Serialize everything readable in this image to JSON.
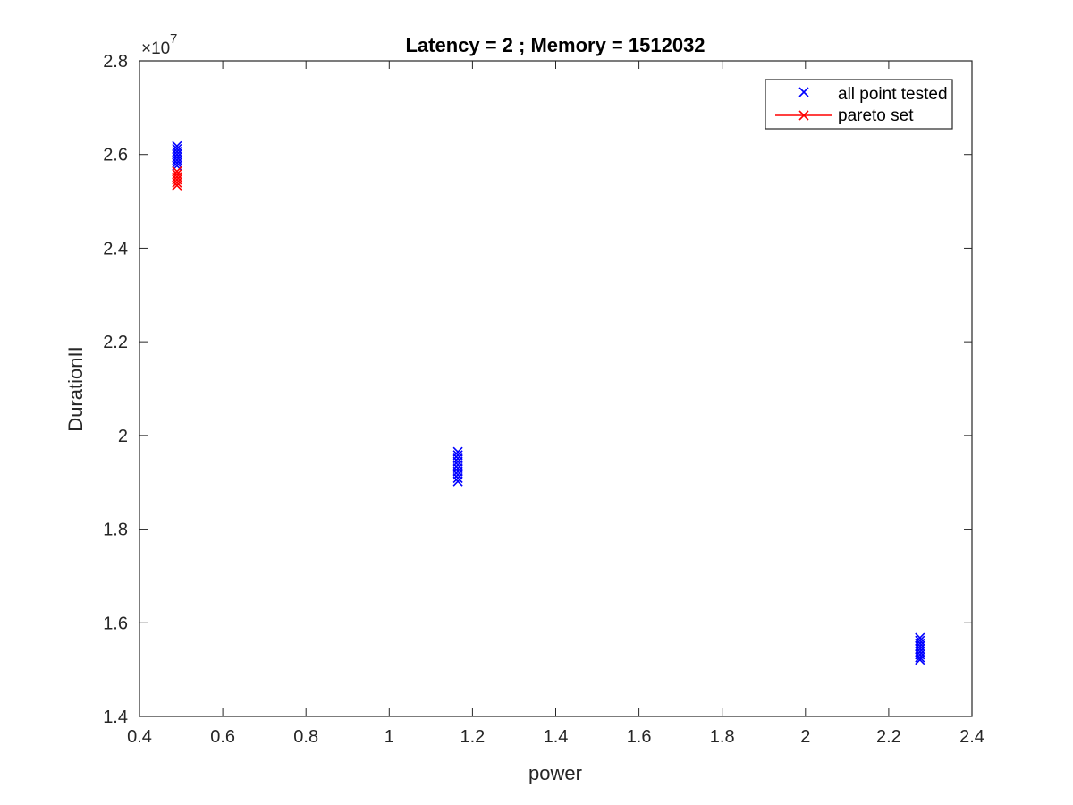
{
  "chart_data": {
    "type": "scatter",
    "title": "Latency = 2 ; Memory = 1512032",
    "xlabel": "power",
    "ylabel": "DurationII",
    "xlim": [
      0.4,
      2.4
    ],
    "ylim": [
      1.4,
      2.8
    ],
    "y_scale_exponent": {
      "base": "×10",
      "power": "7"
    },
    "xticks": [
      "0.4",
      "0.6",
      "0.8",
      "1",
      "1.2",
      "1.4",
      "1.6",
      "1.8",
      "2",
      "2.2",
      "2.4"
    ],
    "yticks": [
      "1.4",
      "1.6",
      "1.8",
      "2",
      "2.2",
      "2.4",
      "2.6",
      "2.8"
    ],
    "grid": false,
    "legend_position": "top-right",
    "series": [
      {
        "name": "all point tested",
        "color": "#0000ff",
        "marker": "x",
        "line": false,
        "points": [
          [
            0.49,
            2.618
          ],
          [
            0.49,
            2.612
          ],
          [
            0.49,
            2.606
          ],
          [
            0.49,
            2.6
          ],
          [
            0.49,
            2.594
          ],
          [
            0.49,
            2.588
          ],
          [
            0.49,
            2.582
          ],
          [
            0.49,
            2.576
          ],
          [
            1.165,
            1.965
          ],
          [
            1.165,
            1.958
          ],
          [
            1.165,
            1.951
          ],
          [
            1.165,
            1.944
          ],
          [
            1.165,
            1.937
          ],
          [
            1.165,
            1.93
          ],
          [
            1.165,
            1.923
          ],
          [
            1.165,
            1.916
          ],
          [
            1.165,
            1.909
          ],
          [
            1.165,
            1.902
          ],
          [
            2.275,
            1.568
          ],
          [
            2.275,
            1.562
          ],
          [
            2.275,
            1.556
          ],
          [
            2.275,
            1.55
          ],
          [
            2.275,
            1.544
          ],
          [
            2.275,
            1.538
          ],
          [
            2.275,
            1.532
          ],
          [
            2.275,
            1.526
          ],
          [
            2.275,
            1.521
          ]
        ]
      },
      {
        "name": "pareto set",
        "color": "#ff0000",
        "marker": "x",
        "line": true,
        "points": [
          [
            0.49,
            2.564
          ],
          [
            0.49,
            2.558
          ],
          [
            0.49,
            2.552
          ],
          [
            0.49,
            2.546
          ],
          [
            0.49,
            2.54
          ],
          [
            0.49,
            2.534
          ]
        ]
      }
    ]
  }
}
